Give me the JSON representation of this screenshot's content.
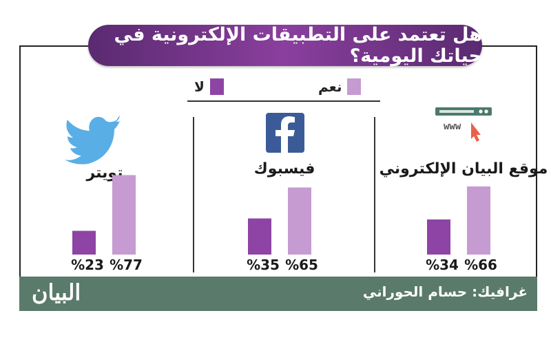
{
  "title": "هل تعتمد على التطبيقات الإلكترونية في حياتك اليومية؟",
  "colors": {
    "title_gradient_start": "#5a2a70",
    "title_gradient_mid": "#8a3f9e",
    "yes": "#c59bd1",
    "no": "#8e44a4",
    "footer": "#5a7a6b",
    "twitter": "#5aaee6",
    "facebook": "#3b5b98"
  },
  "legend": {
    "yes_label": "نعم",
    "no_label": "لا"
  },
  "icons": {
    "twitter": "twitter-bird-icon",
    "facebook": "facebook-logo-icon",
    "website": "browser-window-icon"
  },
  "website_icon_text": "www",
  "chart_data": {
    "type": "bar",
    "title": "هل تعتمد على التطبيقات الإلكترونية في حياتك اليومية؟",
    "categories": [
      "تويتر",
      "فيسبوك",
      "موقع البيان الإلكتروني"
    ],
    "series": [
      {
        "name": "نعم",
        "values": [
          77,
          65,
          66
        ]
      },
      {
        "name": "لا",
        "values": [
          23,
          35,
          34
        ]
      }
    ],
    "value_labels": {
      "yes": [
        "%77",
        "%65",
        "%66"
      ],
      "no": [
        "%23",
        "%35",
        "%34"
      ]
    },
    "ylim": [
      0,
      100
    ],
    "legend_position": "top-center",
    "grid": false
  },
  "footer": {
    "credit": "غرافيك: حسام الحوراني",
    "logo_text": "البيان"
  }
}
